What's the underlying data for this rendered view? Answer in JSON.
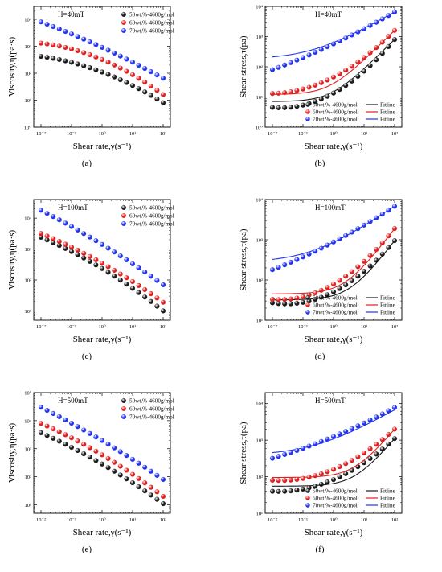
{
  "panel_letters": [
    "(a)",
    "(b)",
    "(c)",
    "(d)",
    "(e)",
    "(f)"
  ],
  "colors": {
    "black": "#1a1a1a",
    "red": "#e02020",
    "blue": "#2233ee"
  },
  "chart_data": [
    {
      "id": "a",
      "type": "scatter",
      "xscale": "log",
      "yscale": "log",
      "xlim": [
        0.01,
        100
      ],
      "ylim": [
        1,
        30000
      ],
      "annotation": "H=40mT",
      "xlabel": "Shear rate,γ(s⁻¹)",
      "ylabel": "Viscosity,η(pa·s)",
      "xticks": [
        "10⁻²",
        "10⁻¹",
        "10⁰",
        "10¹",
        "10²"
      ],
      "yticks": [
        {
          "v": 1,
          "t": "10⁰"
        },
        {
          "v": 10,
          "t": "10¹"
        },
        {
          "v": 100,
          "t": "10²"
        },
        {
          "v": 1000,
          "t": "10³"
        },
        {
          "v": 10000,
          "t": "10⁴"
        }
      ],
      "series": [
        {
          "name": "50wt.%-4600g/mol",
          "color": "black",
          "points": [
            [
              0.01,
              420
            ],
            [
              100,
              8
            ]
          ],
          "curve": 0.28
        },
        {
          "name": "60wt.%-4600g/mol",
          "color": "red",
          "points": [
            [
              0.01,
              1300
            ],
            [
              100,
              16
            ]
          ],
          "curve": 0.35
        },
        {
          "name": "70wt.%-4600g/mol",
          "color": "blue",
          "points": [
            [
              0.01,
              8000
            ],
            [
              100,
              65
            ]
          ],
          "curve": 0.1
        }
      ]
    },
    {
      "id": "b",
      "type": "scatter",
      "xscale": "log",
      "yscale": "log",
      "xlim": [
        0.01,
        100
      ],
      "ylim": [
        1,
        10000
      ],
      "annotation": "H=40mT",
      "xlabel": "Shear rate,γ(s⁻¹)",
      "ylabel": "Shear stress,τ(pa)",
      "xticks": [
        "10⁻²",
        "10⁻¹",
        "10⁰",
        "10¹",
        "10²"
      ],
      "yticks": [
        {
          "v": 1,
          "t": "10⁰"
        },
        {
          "v": 10,
          "t": "10¹"
        },
        {
          "v": 100,
          "t": "10²"
        },
        {
          "v": 1000,
          "t": "10³"
        },
        {
          "v": 10000,
          "t": "10⁴"
        }
      ],
      "fit_label": "Fitline",
      "series": [
        {
          "name": "50wt.%-4600g/mol",
          "color": "black",
          "points": [
            [
              0.01,
              4.5
            ],
            [
              100,
              800
            ]
          ],
          "curve": -0.65,
          "fit": {
            "tau0": 7,
            "k": 8,
            "n": 1
          }
        },
        {
          "name": "60wt.%-4600g/mol",
          "color": "red",
          "points": [
            [
              0.01,
              13
            ],
            [
              100,
              1600
            ]
          ],
          "curve": -0.5,
          "fit": {
            "tau0": 12,
            "k": 16,
            "n": 1
          }
        },
        {
          "name": "70wt.%-4600g/mol",
          "color": "blue",
          "points": [
            [
              0.01,
              80
            ],
            [
              100,
              6500
            ]
          ],
          "curve": -0.1,
          "fit": {
            "tau0": 180,
            "k": 460,
            "n": 0.57
          }
        }
      ]
    },
    {
      "id": "c",
      "type": "scatter",
      "xscale": "log",
      "yscale": "log",
      "xlim": [
        0.01,
        100
      ],
      "ylim": [
        5,
        40000
      ],
      "annotation": "H=100mT",
      "xlabel": "Shear rate,γ(s⁻¹)",
      "ylabel": "Viscosity,η(pa·s)",
      "xticks": [
        "10⁻²",
        "10⁻¹",
        "10⁰",
        "10¹",
        "10²"
      ],
      "yticks": [
        {
          "v": 10,
          "t": "10¹"
        },
        {
          "v": 100,
          "t": "10²"
        },
        {
          "v": 1000,
          "t": "10³"
        },
        {
          "v": 10000,
          "t": "10⁴"
        }
      ],
      "series": [
        {
          "name": "50wt.%-4600g/mol",
          "color": "black",
          "points": [
            [
              0.01,
              2400
            ],
            [
              100,
              10
            ]
          ],
          "curve": 0.18
        },
        {
          "name": "60wt.%-4600g/mol",
          "color": "red",
          "points": [
            [
              0.01,
              3200
            ],
            [
              100,
              19
            ]
          ],
          "curve": 0.15
        },
        {
          "name": "70wt.%-4600g/mol",
          "color": "blue",
          "points": [
            [
              0.01,
              18000
            ],
            [
              100,
              70
            ]
          ],
          "curve": 0.1
        }
      ]
    },
    {
      "id": "d",
      "type": "scatter",
      "xscale": "log",
      "yscale": "log",
      "xlim": [
        0.01,
        100
      ],
      "ylim": [
        10,
        10000
      ],
      "annotation": "H=100mT",
      "xlabel": "Shear rate,γ(s⁻¹)",
      "ylabel": "Shear stress,τ(pa)",
      "xticks": [
        "10⁻²",
        "10⁻¹",
        "10⁰",
        "10¹",
        "10²"
      ],
      "yticks": [
        {
          "v": 10,
          "t": "10¹"
        },
        {
          "v": 100,
          "t": "10²"
        },
        {
          "v": 1000,
          "t": "10³"
        },
        {
          "v": 10000,
          "t": "10⁴"
        }
      ],
      "fit_label": "Fitline",
      "series": [
        {
          "name": "50wt.%-4600g/mol",
          "color": "black",
          "points": [
            [
              0.01,
              27
            ],
            [
              100,
              950
            ]
          ],
          "curve": -0.5,
          "fit": {
            "tau0": 32,
            "k": 9.2,
            "n": 1
          }
        },
        {
          "name": "60wt.%-4600g/mol",
          "color": "red",
          "points": [
            [
              0.01,
              33
            ],
            [
              100,
              1900
            ]
          ],
          "curve": -0.5,
          "fit": {
            "tau0": 45,
            "k": 18.5,
            "n": 1
          }
        },
        {
          "name": "70wt.%-4600g/mol",
          "color": "blue",
          "points": [
            [
              0.01,
              180
            ],
            [
              100,
              6800
            ]
          ],
          "curve": -0.1,
          "fit": {
            "tau0": 270,
            "k": 600,
            "n": 0.52
          }
        }
      ]
    },
    {
      "id": "e",
      "type": "scatter",
      "xscale": "log",
      "yscale": "log",
      "xlim": [
        0.01,
        100
      ],
      "ylim": [
        5,
        100000
      ],
      "annotation": "H=500mT",
      "xlabel": "Shear rate,γ(s⁻¹)",
      "ylabel": "Viscosity,η(pa·s)",
      "xticks": [
        "10⁻²",
        "10⁻¹",
        "10⁰",
        "10¹",
        "10²"
      ],
      "yticks": [
        {
          "v": 10,
          "t": "10¹"
        },
        {
          "v": 100,
          "t": "10²"
        },
        {
          "v": 1000,
          "t": "10³"
        },
        {
          "v": 10000,
          "t": "10⁴"
        },
        {
          "v": 100000,
          "t": "10⁵"
        }
      ],
      "series": [
        {
          "name": "50wt.%-4600g/mol",
          "color": "black",
          "points": [
            [
              0.01,
              3700
            ],
            [
              100,
              11
            ]
          ],
          "curve": 0.15
        },
        {
          "name": "60wt.%-4600g/mol",
          "color": "red",
          "points": [
            [
              0.01,
              8000
            ],
            [
              100,
              20
            ]
          ],
          "curve": 0.18
        },
        {
          "name": "70wt.%-4600g/mol",
          "color": "blue",
          "points": [
            [
              0.01,
              30000
            ],
            [
              100,
              80
            ]
          ],
          "curve": 0.1
        }
      ]
    },
    {
      "id": "f",
      "type": "scatter",
      "xscale": "log",
      "yscale": "log",
      "xlim": [
        0.01,
        100
      ],
      "ylim": [
        10,
        20000
      ],
      "annotation": "H=500mT",
      "xlabel": "Shear rate,γ(s⁻¹)",
      "ylabel": "Shear stress,τ(pa)",
      "xticks": [
        "10⁻²",
        "10⁻¹",
        "10⁰",
        "10¹",
        "10²"
      ],
      "yticks": [
        {
          "v": 10,
          "t": "10¹"
        },
        {
          "v": 100,
          "t": "10²"
        },
        {
          "v": 1000,
          "t": "10³"
        },
        {
          "v": 10000,
          "t": "10⁴"
        }
      ],
      "fit_label": "Fitline",
      "series": [
        {
          "name": "50wt.%-4600g/mol",
          "color": "black",
          "points": [
            [
              0.01,
              40
            ],
            [
              100,
              1100
            ]
          ],
          "curve": -0.4,
          "fit": {
            "tau0": 55,
            "k": 10.5,
            "n": 1
          }
        },
        {
          "name": "60wt.%-4600g/mol",
          "color": "red",
          "points": [
            [
              0.01,
              80
            ],
            [
              100,
              2000
            ]
          ],
          "curve": -0.4,
          "fit": {
            "tau0": 95,
            "k": 19,
            "n": 1
          }
        },
        {
          "name": "70wt.%-4600g/mol",
          "color": "blue",
          "points": [
            [
              0.01,
              320
            ],
            [
              100,
              7800
            ]
          ],
          "curve": -0.1,
          "fit": {
            "tau0": 380,
            "k": 700,
            "n": 0.48
          }
        }
      ]
    }
  ]
}
